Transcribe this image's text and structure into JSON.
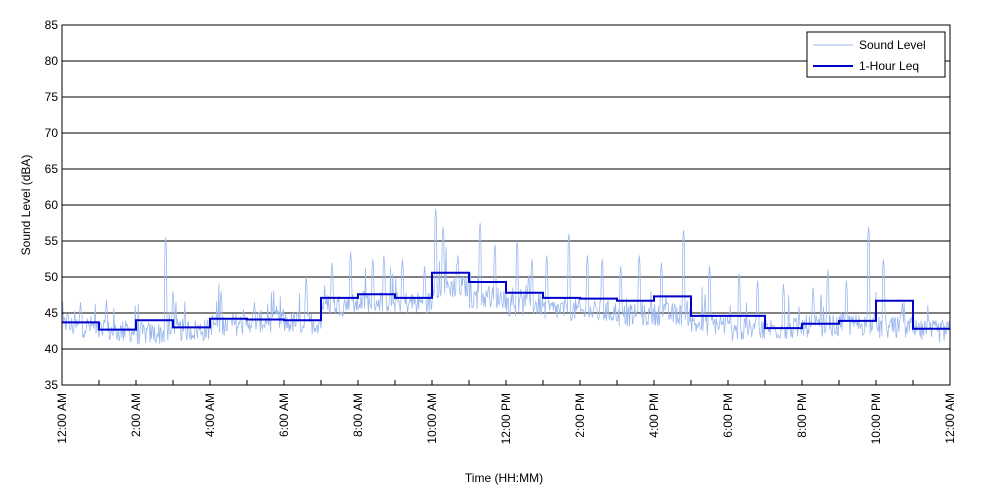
{
  "chart_data": {
    "type": "line",
    "title": "",
    "xlabel": "Time (HH:MM)",
    "ylabel": "Sound Level (dBA)",
    "ylim": [
      35,
      85
    ],
    "xlim": [
      0,
      24
    ],
    "y_ticks": [
      "35",
      "40",
      "45",
      "50",
      "55",
      "60",
      "65",
      "70",
      "75",
      "80",
      "85"
    ],
    "x_ticks": [
      "12:00 AM",
      "2:00 AM",
      "4:00 AM",
      "6:00 AM",
      "8:00 AM",
      "10:00 AM",
      "12:00 PM",
      "2:00 PM",
      "4:00 PM",
      "6:00 PM",
      "8:00 PM",
      "10:00 PM",
      "12:00 AM"
    ],
    "grid": "horizontal",
    "legend_position": "top-right",
    "series": [
      {
        "name": "Sound Level",
        "color": "#9bb8ee",
        "hour_base": [
          42.5,
          41.8,
          41.5,
          42.0,
          42.8,
          43.2,
          43.0,
          45.5,
          46.0,
          45.8,
          48.0,
          46.5,
          45.5,
          44.8,
          44.5,
          44.0,
          44.2,
          42.8,
          42.0,
          42.2,
          42.5,
          42.8,
          42.3,
          41.8
        ],
        "spikes": [
          [
            0.15,
            45.5
          ],
          [
            0.5,
            46.5
          ],
          [
            1.2,
            46.8
          ],
          [
            2.8,
            55.5
          ],
          [
            3.0,
            48.0
          ],
          [
            4.3,
            48.0
          ],
          [
            5.2,
            46.5
          ],
          [
            5.8,
            46.0
          ],
          [
            6.6,
            50.0
          ],
          [
            7.3,
            52.0
          ],
          [
            7.8,
            53.5
          ],
          [
            8.4,
            52.5
          ],
          [
            8.7,
            53.0
          ],
          [
            9.2,
            52.5
          ],
          [
            9.8,
            51.5
          ],
          [
            10.1,
            59.5
          ],
          [
            10.3,
            57.0
          ],
          [
            10.7,
            53.0
          ],
          [
            11.3,
            57.5
          ],
          [
            11.7,
            54.5
          ],
          [
            12.3,
            55.0
          ],
          [
            12.7,
            52.5
          ],
          [
            13.1,
            53.0
          ],
          [
            13.7,
            56.0
          ],
          [
            14.2,
            53.0
          ],
          [
            14.6,
            52.5
          ],
          [
            15.1,
            51.5
          ],
          [
            15.6,
            53.0
          ],
          [
            16.2,
            52.0
          ],
          [
            16.8,
            56.5
          ],
          [
            17.5,
            51.5
          ],
          [
            18.3,
            50.5
          ],
          [
            18.8,
            49.5
          ],
          [
            19.5,
            49.0
          ],
          [
            20.3,
            48.5
          ],
          [
            20.7,
            51.0
          ],
          [
            21.2,
            49.5
          ],
          [
            21.8,
            57.0
          ],
          [
            22.2,
            52.5
          ],
          [
            22.7,
            46.0
          ]
        ]
      },
      {
        "name": "1-Hour Leq",
        "color": "#0000cc",
        "values": [
          43.7,
          42.7,
          44.0,
          43.0,
          44.2,
          44.1,
          44.0,
          47.1,
          47.6,
          47.1,
          50.6,
          49.3,
          47.8,
          47.1,
          47.0,
          46.7,
          47.3,
          44.6,
          44.6,
          42.9,
          43.5,
          43.9,
          46.7,
          42.8
        ]
      }
    ]
  }
}
